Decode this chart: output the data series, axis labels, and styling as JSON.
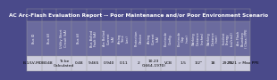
{
  "title": "AC Arc-Flash Evaluation Report -- Poor Maintenance and/or Poor Environment Scenario",
  "title_color": "#FFFFFF",
  "title_bg": "#4a4a8a",
  "header_bg": "#6b6b9e",
  "row_bg": "#ccccdd",
  "border_color": "#999999",
  "columns": [
    "Bus ID",
    "Bus kV",
    "Utility Short\nCircuit (kA)",
    "Bus kV",
    "Bus Bolted\nFault (kA)",
    "Arc Bolted\nCurrent\n(kA)",
    "Arcing\nTime\n(sec)",
    "Protection\nDevice",
    "Arcing\nCurrent\n(kA)",
    "Electrode\nConfig.",
    "Electrode\nGap\n(mm)",
    "Working\nDistance\n(inches)",
    "Working\nDistance\n(mm)",
    "Incident\nEnergy\n(cal/cm2)",
    "Arc Flash\nBoundary\n/ Class / PPE"
  ],
  "data_row": [
    "B-1/LV-MDB",
    "0.48",
    "To be\nCalculated",
    "0.48",
    "9.465",
    "0.940",
    "0.11",
    "2",
    "10.23\n(1664-1970)",
    "VCB",
    "1.5",
    "1/2\"",
    "18",
    "29.75",
    "2021 > Max PPE"
  ],
  "font_size_title": 4.2,
  "font_size_header": 2.5,
  "font_size_data": 3.2
}
